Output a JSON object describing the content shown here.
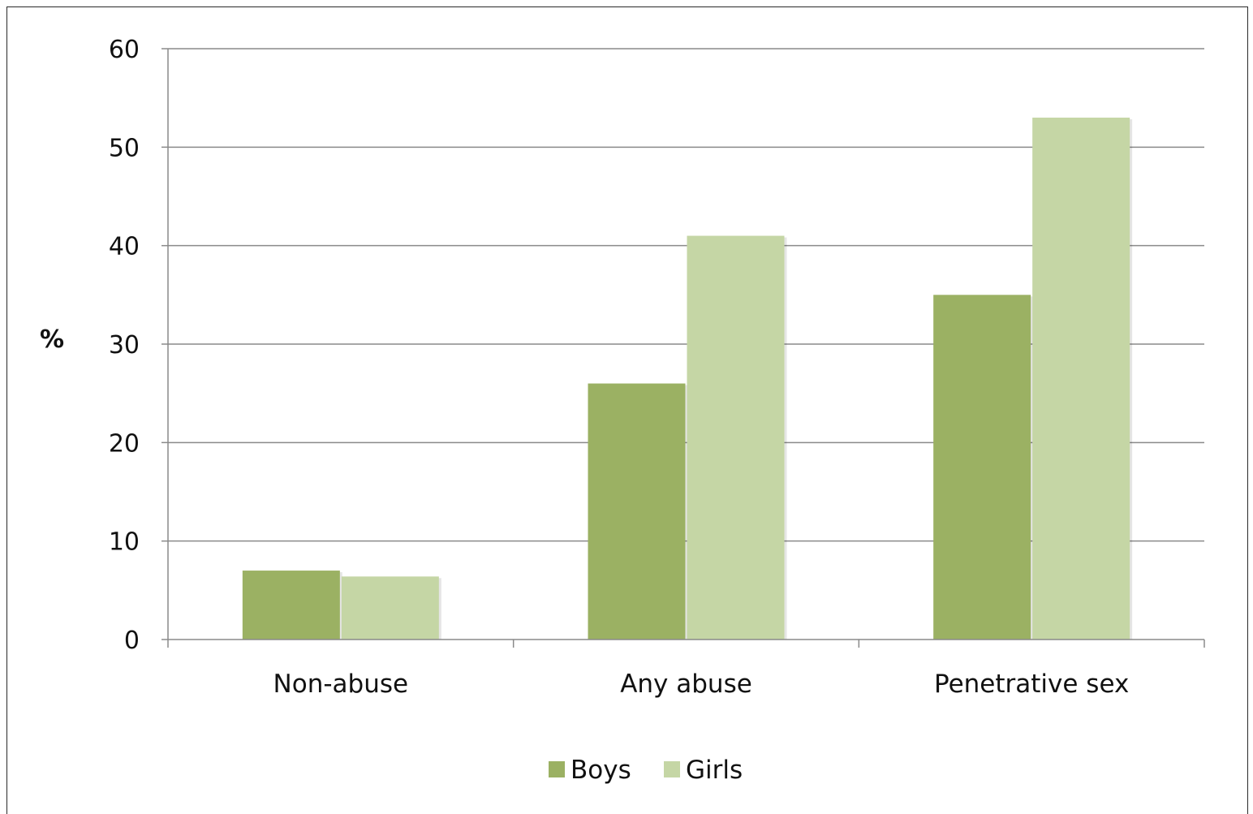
{
  "chart_data": {
    "type": "bar",
    "categories": [
      "Non-abuse",
      "Any abuse",
      "Penetrative sex"
    ],
    "series": [
      {
        "name": "Boys",
        "values": [
          7,
          26,
          35
        ],
        "color": "#9bb163"
      },
      {
        "name": "Girls",
        "values": [
          6.4,
          41,
          53
        ],
        "color": "#c5d6a5"
      }
    ],
    "title": "",
    "xlabel": "",
    "ylabel": "%",
    "ylim": [
      0,
      60
    ],
    "yticks": [
      0,
      10,
      20,
      30,
      40,
      50,
      60
    ],
    "grid": true,
    "legend": "bottom-center"
  }
}
